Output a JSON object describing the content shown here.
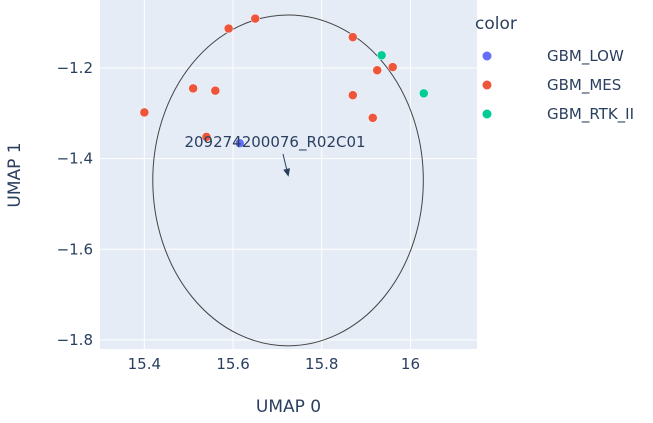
{
  "chart_data": {
    "type": "scatter",
    "xlabel": "UMAP 0",
    "ylabel": "UMAP 1",
    "xlim": [
      15.3,
      16.15
    ],
    "ylim": [
      -1.82,
      -1.05
    ],
    "xticks": [
      15.4,
      15.6,
      15.8,
      16.0
    ],
    "xtick_labels": [
      "15.4",
      "15.6",
      "15.8",
      "16"
    ],
    "yticks": [
      -1.2,
      -1.4,
      -1.6,
      -1.8
    ],
    "ytick_labels": [
      "−1.2",
      "−1.4",
      "−1.6",
      "−1.8"
    ],
    "grid": true,
    "legend": {
      "title": "color",
      "placement": "right"
    },
    "series": [
      {
        "name": "GBM_LOW",
        "color": "#636efa",
        "points": [
          {
            "x": 15.615,
            "y": -1.366
          }
        ]
      },
      {
        "name": "GBM_MES",
        "color": "#ef553b",
        "points": [
          {
            "x": 15.59,
            "y": -1.113
          },
          {
            "x": 15.65,
            "y": -1.091
          },
          {
            "x": 15.87,
            "y": -1.132
          },
          {
            "x": 15.4,
            "y": -1.298
          },
          {
            "x": 15.51,
            "y": -1.245
          },
          {
            "x": 15.56,
            "y": -1.25
          },
          {
            "x": 15.54,
            "y": -1.352
          },
          {
            "x": 15.87,
            "y": -1.26
          },
          {
            "x": 15.915,
            "y": -1.31
          },
          {
            "x": 15.925,
            "y": -1.205
          },
          {
            "x": 15.96,
            "y": -1.198
          }
        ]
      },
      {
        "name": "GBM_RTK_II",
        "color": "#00cc96",
        "points": [
          {
            "x": 15.935,
            "y": -1.172
          },
          {
            "x": 16.03,
            "y": -1.256
          }
        ]
      }
    ],
    "shapes": [
      {
        "type": "circle",
        "center": [
          15.724,
          -1.448
        ],
        "radius_x": 0.305,
        "radius_y": 0.365,
        "color": "#444444"
      }
    ],
    "annotations": [
      {
        "text": "209274200076_R02C01",
        "point": [
          15.725,
          -1.44
        ]
      }
    ]
  }
}
